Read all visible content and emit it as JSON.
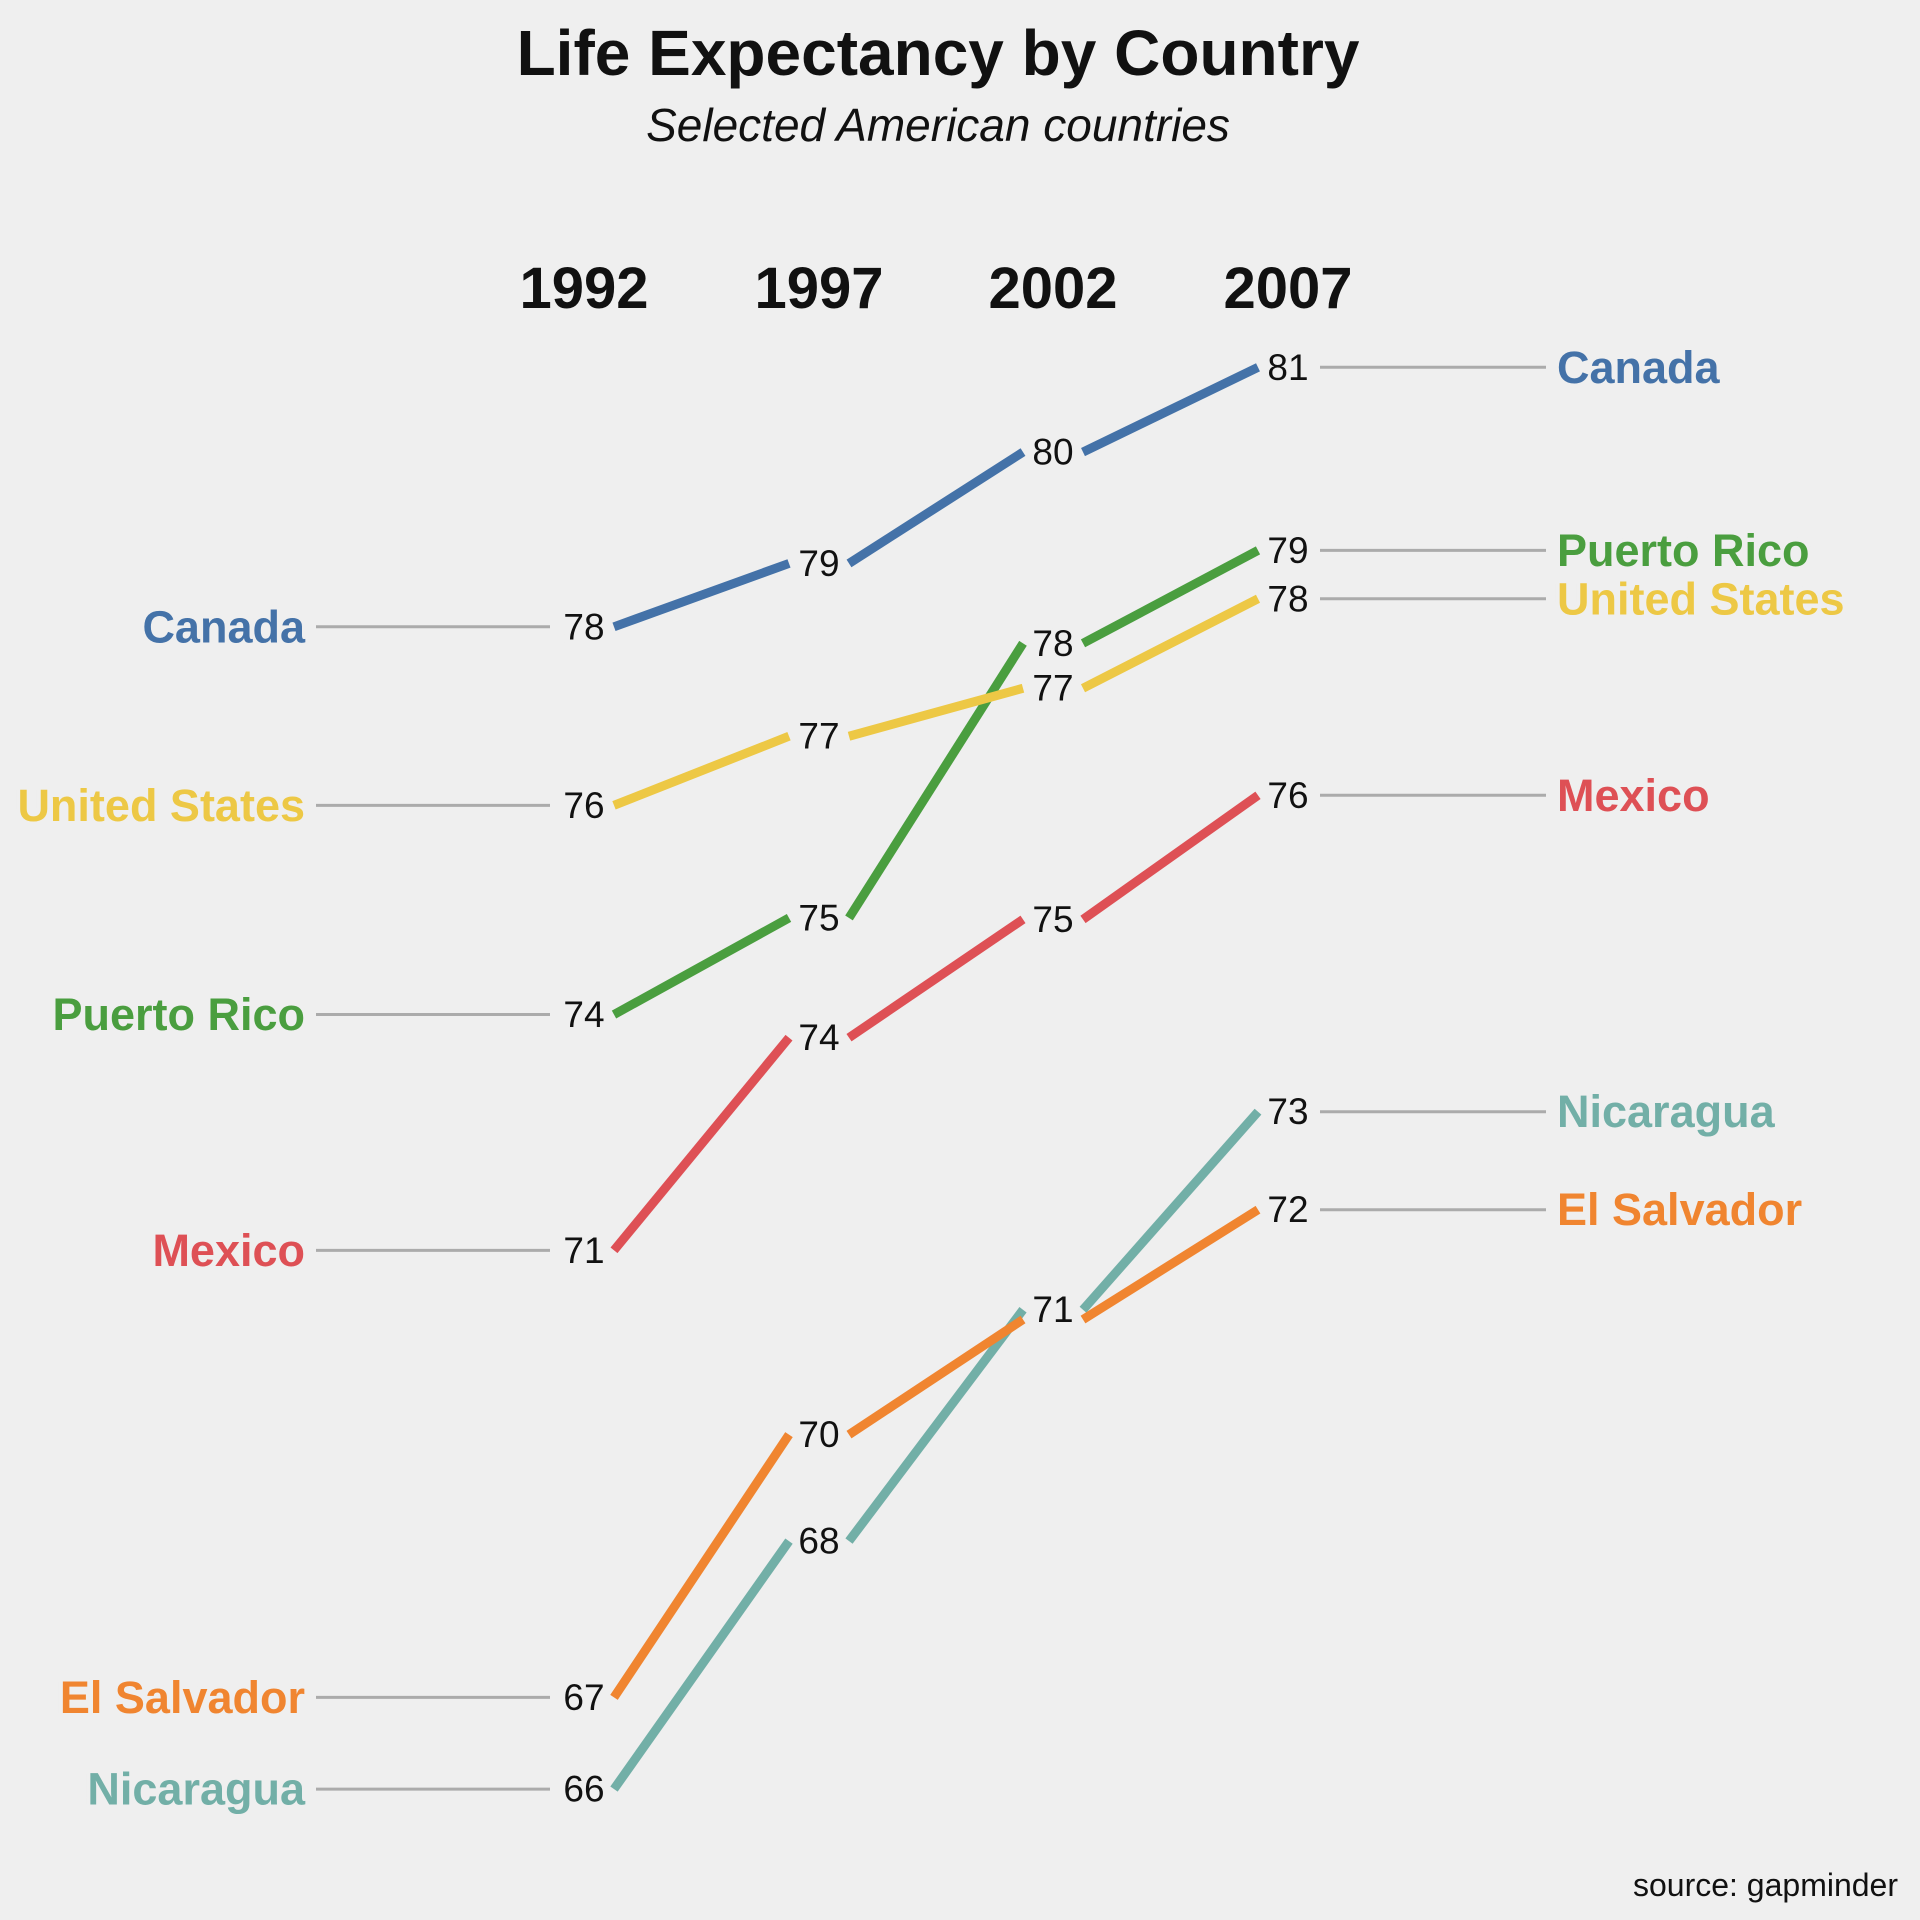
{
  "title": "Life Expectancy by Country",
  "subtitle": "Selected American countries",
  "source_note": "source: gapminder",
  "chart_data": {
    "type": "line",
    "variant": "slopegraph",
    "x": [
      "1992",
      "1997",
      "2002",
      "2007"
    ],
    "title": "Life Expectancy by Country",
    "subtitle": "Selected American countries",
    "grid": false,
    "legend_position": "country labels at left and right line ends",
    "label_connector_color": "#ABABAB",
    "background_color": "#EFEFEF",
    "series": [
      {
        "name": "Canada",
        "color": "#4472A8",
        "values": [
          78,
          79,
          80,
          81
        ],
        "values_exact": [
          77.95,
          78.61,
          79.77,
          80.653
        ]
      },
      {
        "name": "Puerto Rico",
        "color": "#4A9E3F",
        "values": [
          74,
          75,
          78,
          79
        ],
        "values_exact": [
          73.911,
          74.917,
          77.778,
          78.746
        ]
      },
      {
        "name": "United States",
        "color": "#EDC845",
        "values": [
          76,
          77,
          77,
          78
        ],
        "values_exact": [
          76.09,
          76.81,
          77.31,
          78.242
        ]
      },
      {
        "name": "Mexico",
        "color": "#DE5055",
        "values": [
          71,
          74,
          75,
          76
        ],
        "values_exact": [
          71.455,
          73.67,
          74.902,
          76.195
        ]
      },
      {
        "name": "Nicaragua",
        "color": "#72AFA7",
        "values": [
          66,
          68,
          71,
          73
        ],
        "values_exact": [
          65.843,
          68.426,
          70.836,
          72.899
        ]
      },
      {
        "name": "El Salvador",
        "color": "#F08530",
        "values": [
          67,
          70,
          71,
          72
        ],
        "values_exact": [
          66.798,
          69.535,
          70.734,
          71.878
        ]
      }
    ]
  }
}
